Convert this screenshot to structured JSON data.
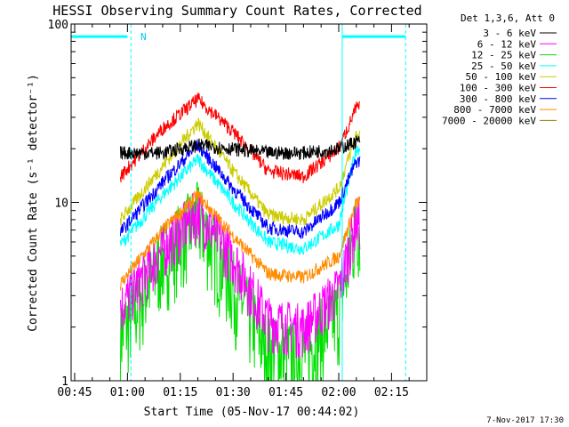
{
  "chart_data": {
    "type": "line",
    "title": "HESSI Observing Summary Count Rates, Corrected",
    "xlabel": "Start Time (05-Nov-17 00:44:02)",
    "ylabel": "Corrected Count Rate (s⁻¹ detector⁻¹)",
    "y_scale": "log",
    "ylim": [
      1,
      100
    ],
    "xlim_minutes": [
      "00:44",
      "02:25"
    ],
    "y_ticks": [
      "1",
      "10",
      "100"
    ],
    "x_ticks": [
      "00:45",
      "01:00",
      "01:15",
      "01:30",
      "01:45",
      "02:00",
      "02:15"
    ],
    "legend_title": "Det 1,3,6, Att 0",
    "legend_position": "right",
    "night_label": "N",
    "timestamp": "7-Nov-2017 17:30",
    "data_span": [
      "00:58",
      "02:06"
    ],
    "series": [
      {
        "name": "3 - 6 keV",
        "color": "#000000",
        "x": [
          "00:58",
          "01:10",
          "01:20",
          "01:30",
          "01:40",
          "01:50",
          "02:00",
          "02:05"
        ],
        "y": [
          19,
          19,
          21,
          20,
          19,
          19,
          20,
          22
        ]
      },
      {
        "name": "6 - 12 keV",
        "color": "#ff00ff",
        "x": [
          "00:58",
          "01:10",
          "01:20",
          "01:30",
          "01:40",
          "01:50",
          "02:00",
          "02:05"
        ],
        "y": [
          2.6,
          5.5,
          9.0,
          5.0,
          2.2,
          2.0,
          3.3,
          8.0
        ]
      },
      {
        "name": "12 - 25 keV",
        "color": "#00e000",
        "x": [
          "00:58",
          "01:10",
          "01:20",
          "01:30",
          "01:40",
          "01:50",
          "02:00",
          "02:05"
        ],
        "y": [
          1.8,
          5.0,
          8.5,
          3.5,
          1.5,
          1.4,
          2.5,
          7.5
        ]
      },
      {
        "name": "25 - 50 keV",
        "color": "#00ffff",
        "x": [
          "00:58",
          "01:10",
          "01:20",
          "01:30",
          "01:40",
          "01:50",
          "02:00",
          "02:05"
        ],
        "y": [
          5.8,
          11.0,
          17.5,
          10.0,
          6.0,
          5.5,
          7.5,
          20.0
        ]
      },
      {
        "name": "50 - 100 keV",
        "color": "#cccc00",
        "x": [
          "00:58",
          "01:10",
          "01:20",
          "01:30",
          "01:40",
          "01:50",
          "02:00",
          "02:05"
        ],
        "y": [
          8.0,
          16.0,
          28.0,
          15.0,
          8.5,
          8.0,
          12.0,
          24.0
        ]
      },
      {
        "name": "100 - 300 keV",
        "color": "#ff0000",
        "x": [
          "00:58",
          "01:10",
          "01:20",
          "01:30",
          "01:40",
          "01:50",
          "02:00",
          "02:05"
        ],
        "y": [
          14.0,
          26.0,
          38.0,
          25.0,
          15.0,
          14.0,
          20.0,
          34.0
        ]
      },
      {
        "name": "300 - 800 keV",
        "color": "#0000ff",
        "x": [
          "00:58",
          "01:10",
          "01:20",
          "01:30",
          "01:40",
          "01:50",
          "02:00",
          "02:05"
        ],
        "y": [
          6.8,
          13.0,
          21.0,
          12.0,
          7.2,
          6.8,
          10.0,
          17.0
        ]
      },
      {
        "name": "800 - 7000 keV",
        "color": "#ff8c00",
        "x": [
          "00:58",
          "01:10",
          "01:20",
          "01:30",
          "01:40",
          "01:50",
          "02:00",
          "02:05"
        ],
        "y": [
          3.5,
          7.0,
          11.0,
          6.5,
          4.0,
          3.8,
          5.0,
          10.0
        ]
      },
      {
        "name": "7000 - 20000 keV",
        "color": "#a07800",
        "x": [],
        "y": []
      }
    ],
    "overlays": {
      "cyan_bars_y": 85,
      "left_bar": [
        "00:44",
        "01:00"
      ],
      "right_bar": [
        "02:01",
        "02:19"
      ],
      "solid_lines": [
        "00:44",
        "02:01"
      ],
      "dashed_lines": [
        "01:01",
        "02:19"
      ]
    }
  }
}
